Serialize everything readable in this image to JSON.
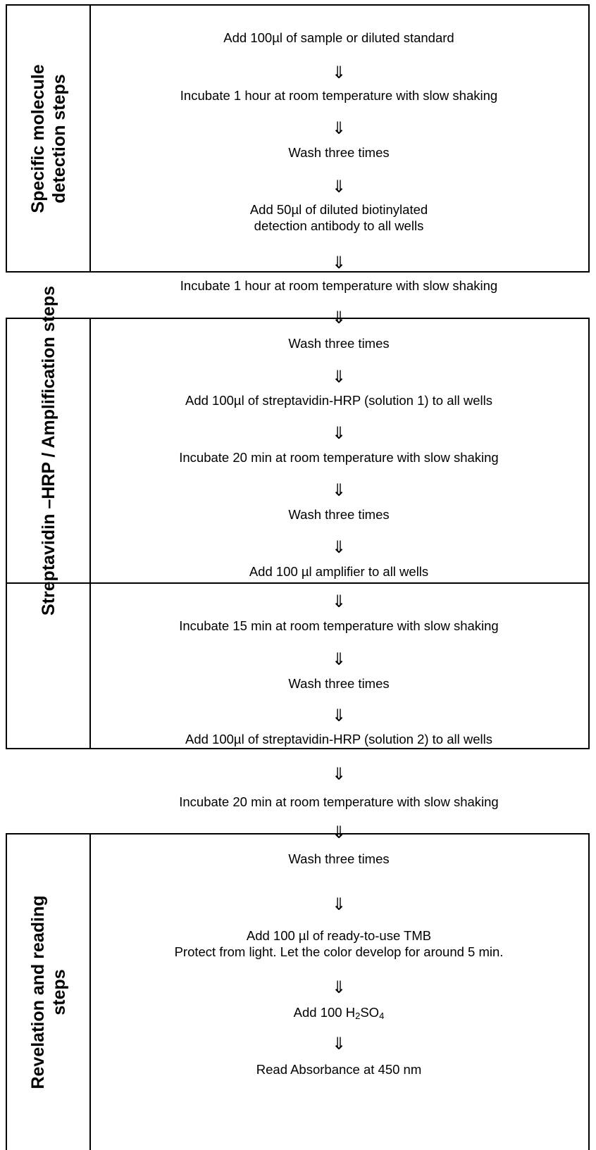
{
  "sections": [
    {
      "label_line1": "Specific molecule",
      "label_line2": "detection steps",
      "steps": [
        "Add 100µl of sample or diluted standard",
        "Incubate 1 hour at room temperature with slow shaking",
        "Wash three times",
        "Add 50µl of diluted biotinylated",
        "detection antibody to all wells"
      ]
    },
    {
      "label": "Streptavidin –HRP / Amplification steps",
      "steps": [
        "Wash three times",
        "Add 100µl of streptavidin-HRP (solution 1) to all wells",
        "Incubate 20 min at room temperature with slow shaking",
        "Wash three times",
        "Add 100 µl amplifier to all wells",
        "Incubate 15 min at room temperature with slow shaking",
        "Wash three times",
        "Add 100µl of streptavidin-HRP (solution 2) to all wells"
      ]
    },
    {
      "label_line1": "Revelation and reading",
      "label_line2": "steps",
      "steps": [
        "Wash three times",
        "Add 100 µl of ready-to-use TMB",
        "Protect from light.  Let the color develop for around 5 min.",
        "Add 100 H",
        "2",
        "SO",
        "4",
        "Read Absorbance at 450 nm"
      ]
    }
  ],
  "between": {
    "step_1": "Incubate 1 hour at room temperature with slow shaking",
    "step_2": "Incubate 20 min at room temperature with slow shaking"
  },
  "arrow_glyph": "⇓"
}
